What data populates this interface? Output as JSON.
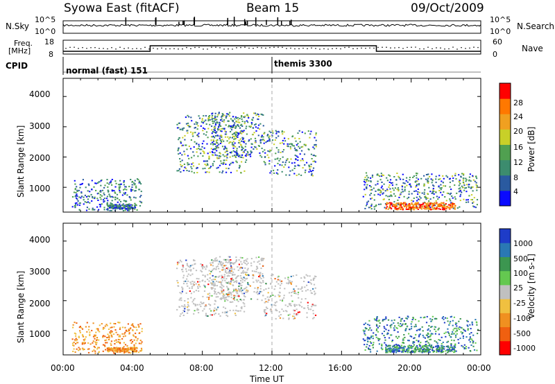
{
  "header": {
    "station": "Syowa East (fitACF)",
    "beam": "Beam 15",
    "date": "09/Oct/2009"
  },
  "top_panels": {
    "nsky_label": "N.Sky",
    "nsky_ticks": [
      "10^5",
      "10^0"
    ],
    "nsearch_label": "N.Search",
    "freq_label_1": "Freq.",
    "freq_label_2": "[MHz]",
    "freq_ticks": [
      "18",
      "8"
    ],
    "nave_ticks": [
      "60",
      "0"
    ],
    "nave_label": "Nave",
    "cpid_label": "CPID",
    "cpid_modes": [
      {
        "name": "normal (fast) 151",
        "start_hour": 0
      },
      {
        "name": "themis 3300",
        "start_hour": 12
      }
    ]
  },
  "chart_data": [
    {
      "type": "heatmap",
      "name": "power",
      "ylabel": "Slant Range [km]",
      "xlim": [
        0,
        24
      ],
      "ylim": [
        180,
        4600
      ],
      "yticks": [
        1000,
        2000,
        3000,
        4000
      ],
      "colorbar": {
        "label": "Power [dB]",
        "ticks": [
          "4",
          "8",
          "12",
          "16",
          "20",
          "24",
          "28"
        ],
        "colors": [
          "#0a0aff",
          "#2a5aa0",
          "#3c8c6e",
          "#50a050",
          "#c8d028",
          "#f0a020",
          "#ff7800",
          "#ff0000"
        ]
      }
    },
    {
      "type": "heatmap",
      "name": "velocity",
      "ylabel": "Slant Range [km]",
      "xlim": [
        0,
        24
      ],
      "ylim": [
        180,
        4600
      ],
      "yticks": [
        1000,
        2000,
        3000,
        4000
      ],
      "colorbar": {
        "label": "Velocity [m s-1]",
        "ticks": [
          "1000",
          "500",
          "100",
          "25",
          "-25",
          "-100",
          "-500",
          "-1000"
        ],
        "colors": [
          "#1e3cc8",
          "#2a78b4",
          "#3c9650",
          "#64c850",
          "#c0c0c0",
          "#f0c040",
          "#f09020",
          "#f06010",
          "#ff0000"
        ]
      }
    }
  ],
  "x_axis": {
    "ticks": [
      "00:00",
      "04:00",
      "08:00",
      "12:00",
      "16:00",
      "20:00",
      "00:00"
    ],
    "label": "Time UT"
  }
}
